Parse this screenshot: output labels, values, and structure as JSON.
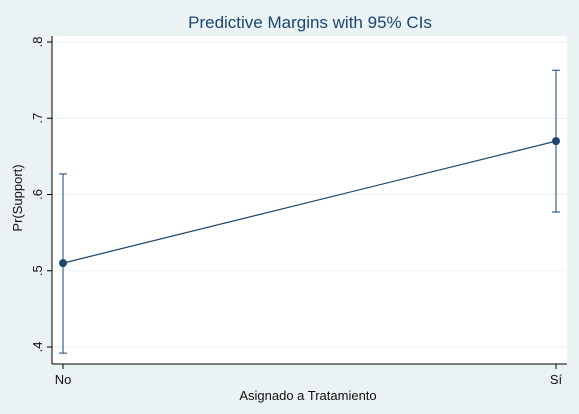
{
  "chart_data": {
    "type": "line",
    "title": "Predictive Margins with 95% CIs",
    "xlabel": "Asignado a Tratamiento",
    "ylabel": "Pr(Support)",
    "categories": [
      "No",
      "Sí"
    ],
    "series": [
      {
        "values": [
          0.51,
          0.67
        ],
        "ci_lower": [
          0.392,
          0.577
        ],
        "ci_upper": [
          0.627,
          0.763
        ]
      }
    ],
    "yticks": [
      {
        "value": 0.4,
        "label": ".4"
      },
      {
        "value": 0.5,
        "label": ".5"
      },
      {
        "value": 0.6,
        "label": ".6"
      },
      {
        "value": 0.7,
        "label": ".7"
      },
      {
        "value": 0.8,
        "label": ".8"
      }
    ],
    "ylim": [
      0.4,
      0.8
    ],
    "grid": true,
    "colors": {
      "background": "#eaf2f3",
      "plot_background": "#ffffff",
      "grid": "#eaf2f3",
      "series": "#1a476f",
      "title": "#1a476f"
    }
  }
}
